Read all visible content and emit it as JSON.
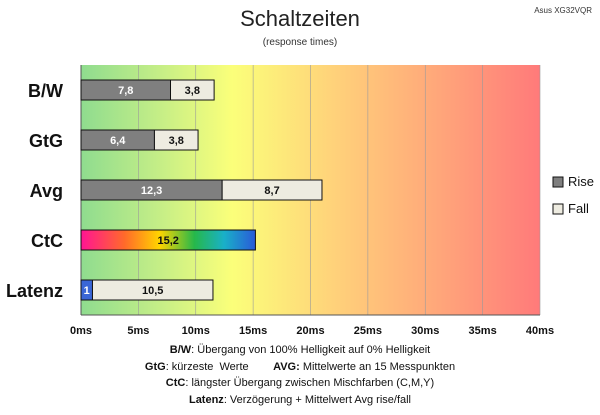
{
  "header": {
    "corner_label": "Asus XG32VQR",
    "title": "Schaltzeiten",
    "subtitle": "(response times)"
  },
  "chart_data": {
    "type": "bar",
    "orientation": "horizontal",
    "stacked": true,
    "categories": [
      "B/W",
      "GtG",
      "Avg",
      "CtC",
      "Latenz"
    ],
    "series": [
      {
        "name": "Rise",
        "values": [
          7.8,
          6.4,
          12.3,
          null,
          null
        ],
        "color": "#7f7f7f"
      },
      {
        "name": "Fall",
        "values": [
          3.8,
          3.8,
          8.7,
          null,
          10.5
        ],
        "color": "#eeece1"
      }
    ],
    "special_bars": {
      "CtC": {
        "value": 15.2,
        "label": "15,2",
        "style": "rainbow"
      },
      "Latenz": {
        "latency_value": 1,
        "latency_label": "1",
        "latency_color": "#3a66d6"
      }
    },
    "value_labels": {
      "B/W": [
        "7,8",
        "3,8"
      ],
      "GtG": [
        "6,4",
        "3,8"
      ],
      "Avg": [
        "12,3",
        "8,7"
      ],
      "Latenz": [
        "10,5"
      ]
    },
    "x_ticks": [
      "0ms",
      "5ms",
      "10ms",
      "15ms",
      "20ms",
      "25ms",
      "30ms",
      "35ms",
      "40ms"
    ],
    "xlim": [
      0,
      40
    ],
    "grid": true,
    "background": "green-yellow-red gradient",
    "legend": {
      "position": "right",
      "entries": [
        "Rise",
        "Fall"
      ]
    }
  },
  "notes": [
    {
      "key": "B/W",
      "text": ":  Übergang von 100% Helligkeit auf 0% Helligkeit"
    },
    {
      "key": "GtG",
      "text": ": kürzeste  Werte        ",
      "key2": "AVG:",
      "text2": " Mittelwerte  an 15 Messpunkten"
    },
    {
      "key": "CtC",
      "text": ": längster Übergang  zwischen Mischfarben  (C,M,Y)"
    },
    {
      "key": "Latenz",
      "text": ": Verzögerung  + Mittelwert  Avg rise/fall"
    }
  ]
}
